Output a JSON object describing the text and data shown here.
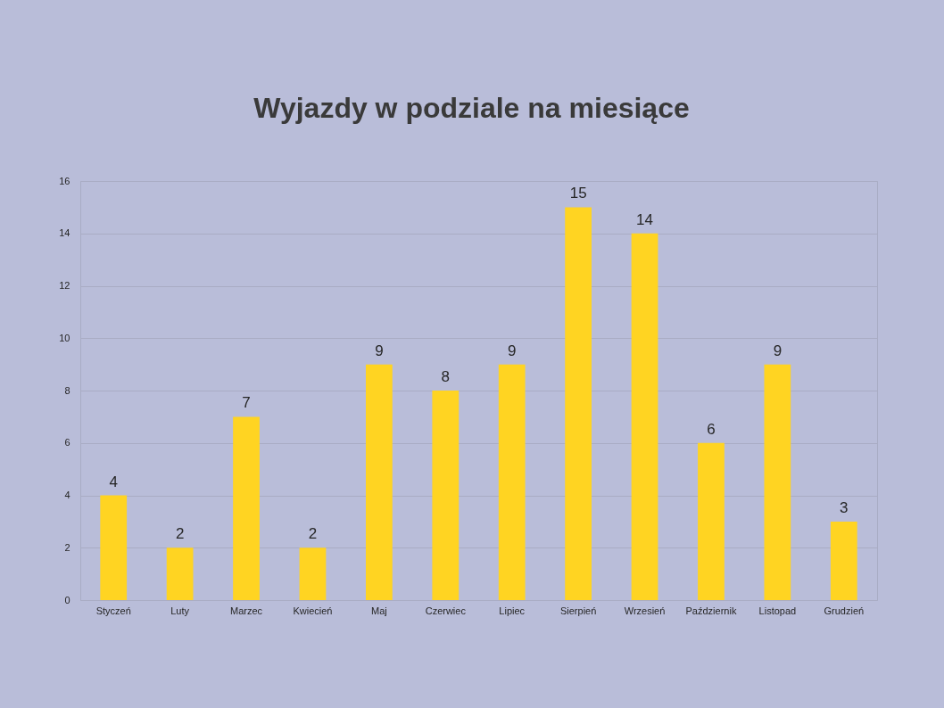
{
  "chart_data": {
    "type": "bar",
    "title": "Wyjazdy w podziale na miesiące",
    "categories": [
      "Styczeń",
      "Luty",
      "Marzec",
      "Kwiecień",
      "Maj",
      "Czerwiec",
      "Lipiec",
      "Sierpień",
      "Wrzesień",
      "Październik",
      "Listopad",
      "Grudzień"
    ],
    "values": [
      4,
      2,
      7,
      2,
      9,
      8,
      9,
      15,
      14,
      6,
      9,
      3
    ],
    "color": "#ffd422",
    "ylim": [
      0,
      16
    ],
    "yticks": [
      0,
      2,
      4,
      6,
      8,
      10,
      12,
      14,
      16
    ],
    "grid": "y",
    "data_labels": true
  }
}
